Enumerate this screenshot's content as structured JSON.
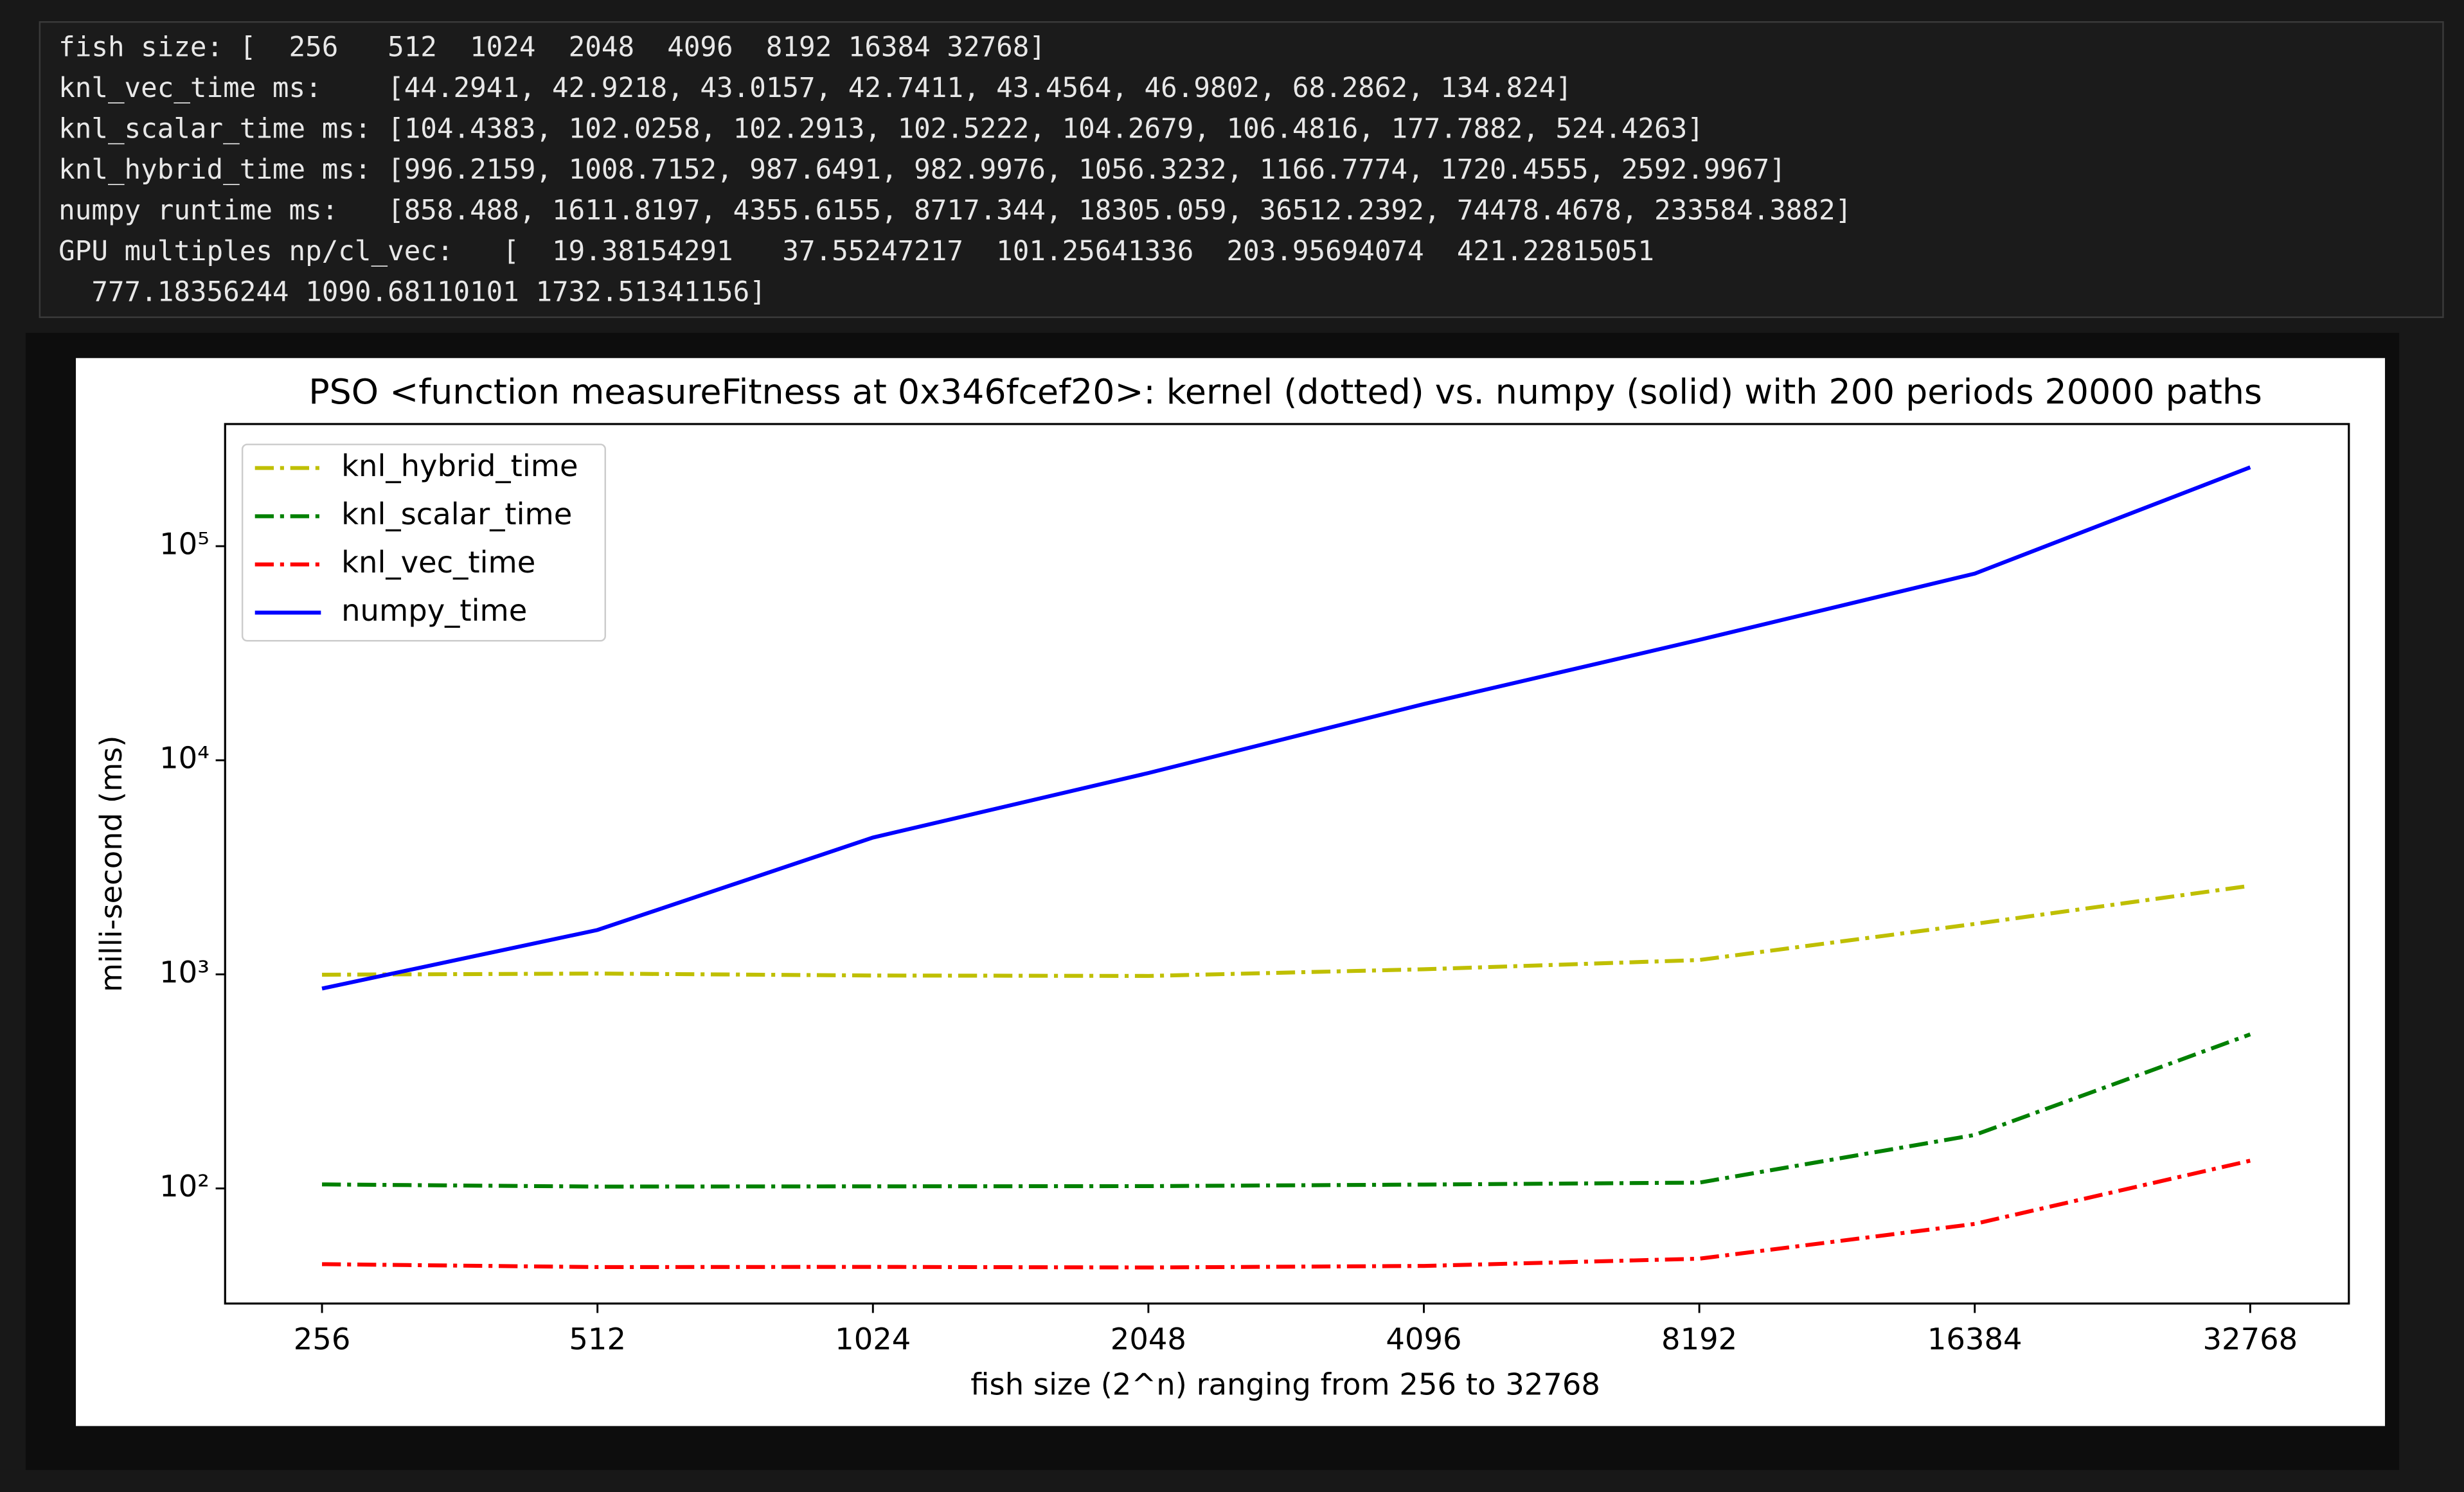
{
  "output": {
    "lines": [
      "fish size: [  256   512  1024  2048  4096  8192 16384 32768]",
      "knl_vec_time ms:    [44.2941, 42.9218, 43.0157, 42.7411, 43.4564, 46.9802, 68.2862, 134.824]",
      "knl_scalar_time ms: [104.4383, 102.0258, 102.2913, 102.5222, 104.2679, 106.4816, 177.7882, 524.4263]",
      "knl_hybrid_time ms: [996.2159, 1008.7152, 987.6491, 982.9976, 1056.3232, 1166.7774, 1720.4555, 2592.9967]",
      "numpy runtime ms:   [858.488, 1611.8197, 4355.6155, 8717.344, 18305.059, 36512.2392, 74478.4678, 233584.3882]",
      "GPU multiples np/cl_vec:   [  19.38154291   37.55247217  101.25641336  203.95694074  421.22815051",
      "  777.18356244 1090.68110101 1732.51341156]"
    ]
  },
  "chart_data": {
    "type": "line",
    "title": "PSO <function measureFitness at 0x346fcef20>: kernel (dotted) vs. numpy (solid) with 200 periods 20000 paths",
    "x_label": "fish size (2^n) ranging from 256 to 32768",
    "y_label": "milli-second (ms)",
    "x": [
      256,
      512,
      1024,
      2048,
      4096,
      8192,
      16384,
      32768
    ],
    "series": [
      {
        "name": "knl_hybrid_time",
        "color": "#bfbf00",
        "linestyle": "-.",
        "values": [
          996.2159,
          1008.7152,
          987.6491,
          982.9976,
          1056.3232,
          1166.7774,
          1720.4555,
          2592.9967
        ]
      },
      {
        "name": "knl_scalar_time",
        "color": "#008000",
        "linestyle": "-.",
        "values": [
          104.4383,
          102.0258,
          102.2913,
          102.5222,
          104.2679,
          106.4816,
          177.7882,
          524.4263
        ]
      },
      {
        "name": "knl_vec_time",
        "color": "#ff0000",
        "linestyle": "-.",
        "values": [
          44.2941,
          42.9218,
          43.0157,
          42.7411,
          43.4564,
          46.9802,
          68.2862,
          134.824
        ]
      },
      {
        "name": "numpy_time",
        "color": "#0000ff",
        "linestyle": "-",
        "values": [
          858.488,
          1611.8197,
          4355.6155,
          8717.344,
          18305.059,
          36512.2392,
          74478.4678,
          233584.3882
        ]
      }
    ],
    "xscale": "log",
    "yscale": "log",
    "xlim": [
      200.6,
      42000
    ],
    "ylim": [
      29,
      372000
    ],
    "xticks": [
      256,
      512,
      1024,
      2048,
      4096,
      8192,
      16384,
      32768
    ],
    "yticks": [
      {
        "value": 100,
        "label": "10²"
      },
      {
        "value": 1000,
        "label": "10³"
      },
      {
        "value": 10000,
        "label": "10⁴"
      },
      {
        "value": 100000,
        "label": "10⁵"
      }
    ],
    "legend": "upper left"
  }
}
